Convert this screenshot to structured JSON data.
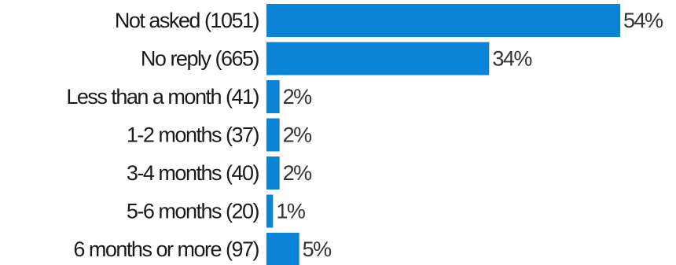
{
  "chart_data": {
    "type": "bar",
    "orientation": "horizontal",
    "categories": [
      "Not asked (1051)",
      "No reply (665)",
      "Less than a month (41)",
      "1-2 months (37)",
      "3-4 months (40)",
      "5-6 months (20)",
      "6 months or more (97)"
    ],
    "values": [
      54,
      34,
      2,
      2,
      2,
      1,
      5
    ],
    "value_labels": [
      "54%",
      "34%",
      "2%",
      "2%",
      "2%",
      "1%",
      "5%"
    ],
    "bar_color": "#0a84d6",
    "unit": "%",
    "axes_visible": false,
    "grid": false,
    "legend": "none"
  }
}
